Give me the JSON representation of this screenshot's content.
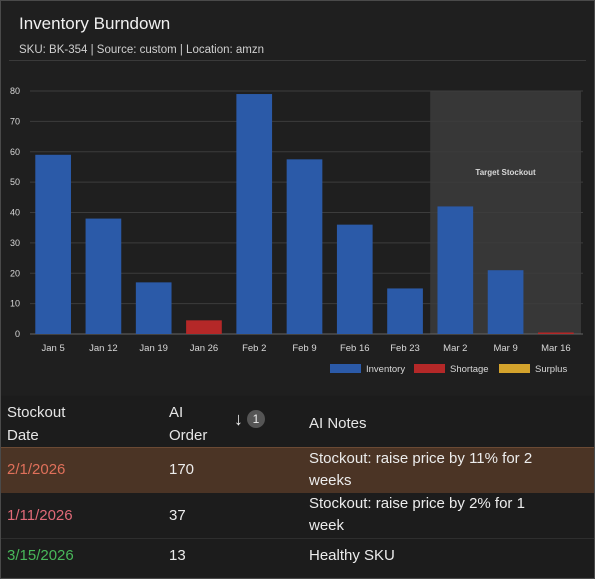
{
  "header": {
    "title": "Inventory Burndown",
    "subtitle": "SKU: BK-354 | Source: custom | Location: amzn"
  },
  "chart_data": {
    "type": "bar",
    "categories": [
      "Jan 5",
      "Jan 12",
      "Jan 19",
      "Jan 26",
      "Feb 2",
      "Feb 9",
      "Feb 16",
      "Feb 23",
      "Mar 2",
      "Mar 9",
      "Mar 16"
    ],
    "series": [
      {
        "name": "Inventory",
        "color": "#2b5aa8",
        "values": [
          59,
          38,
          17,
          0,
          79,
          57.5,
          36,
          15,
          42,
          21,
          0
        ]
      },
      {
        "name": "Shortage",
        "color": "#b42828",
        "values": [
          0,
          0,
          0,
          4.5,
          0,
          0,
          0,
          0,
          0,
          0,
          0.5
        ]
      },
      {
        "name": "Surplus",
        "color": "#d4a32c",
        "values": [
          0,
          0,
          0,
          0,
          0,
          0,
          0,
          0,
          0,
          0,
          0
        ]
      }
    ],
    "ylim": [
      0,
      80
    ],
    "yticks": [
      0,
      10,
      20,
      30,
      40,
      50,
      60,
      70,
      80
    ],
    "grid": true,
    "legend": "bottom-right",
    "annotation": {
      "label": "Target Stockout",
      "from": "Mar 2",
      "to": "Mar 16"
    }
  },
  "table": {
    "headers": {
      "date_line1": "Stockout",
      "date_line2": "Date",
      "order_line1": "AI",
      "order_line2": "Order",
      "notes": "AI Notes"
    },
    "sort_badge": "1",
    "rows": [
      {
        "date": "2/1/2026",
        "date_color": "#e0705a",
        "order": "170",
        "note_line1": "Stockout: raise price by 11% for 2",
        "note_line2": "weeks"
      },
      {
        "date": "1/11/2026",
        "date_color": "#e06a78",
        "order": "37",
        "note_line1": "Stockout: raise price by 2% for 1",
        "note_line2": "week"
      },
      {
        "date": "3/15/2026",
        "date_color": "#48b85a",
        "order": "13",
        "note_line1": "Healthy SKU",
        "note_line2": ""
      }
    ]
  }
}
